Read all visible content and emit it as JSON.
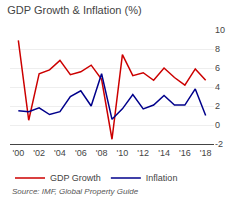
{
  "chart_data": {
    "type": "line",
    "title": "GDP Growth & Inflation (%)",
    "annotations": [
      "Source: IMF, Global Property Guide"
    ],
    "x": [
      2000,
      2001,
      2002,
      2003,
      2004,
      2005,
      2006,
      2007,
      2008,
      2009,
      2010,
      2011,
      2012,
      2013,
      2014,
      2015,
      2016,
      2017,
      2018
    ],
    "series": [
      {
        "name": "GDP Growth",
        "color": "#cc0000",
        "values": [
          8.9,
          0.5,
          5.4,
          5.8,
          6.8,
          5.3,
          5.6,
          6.3,
          4.8,
          -1.5,
          7.4,
          5.2,
          5.5,
          4.7,
          6.0,
          5.0,
          4.2,
          5.9,
          4.7
        ]
      },
      {
        "name": "Inflation",
        "color": "#00008b",
        "values": [
          1.5,
          1.4,
          1.8,
          1.1,
          1.4,
          3.0,
          3.6,
          2.0,
          5.4,
          0.6,
          1.7,
          3.2,
          1.7,
          2.1,
          3.1,
          2.1,
          2.1,
          3.8,
          1.0
        ]
      }
    ],
    "xlim": [
      1999.2,
      2018.8
    ],
    "xticks": [
      {
        "value": 2000,
        "label": "'00"
      },
      {
        "value": 2002,
        "label": "'02"
      },
      {
        "value": 2004,
        "label": "'04"
      },
      {
        "value": 2006,
        "label": "'06"
      },
      {
        "value": 2008,
        "label": "'08"
      },
      {
        "value": 2010,
        "label": "'10"
      },
      {
        "value": 2012,
        "label": "'12"
      },
      {
        "value": 2014,
        "label": "'14"
      },
      {
        "value": 2016,
        "label": "'16"
      },
      {
        "value": 2018,
        "label": "'18"
      }
    ],
    "ylim": [
      -2,
      10
    ],
    "yticks": [
      -2,
      0,
      2,
      4,
      6,
      8,
      10
    ],
    "grid": "y",
    "legend": "lower left"
  }
}
